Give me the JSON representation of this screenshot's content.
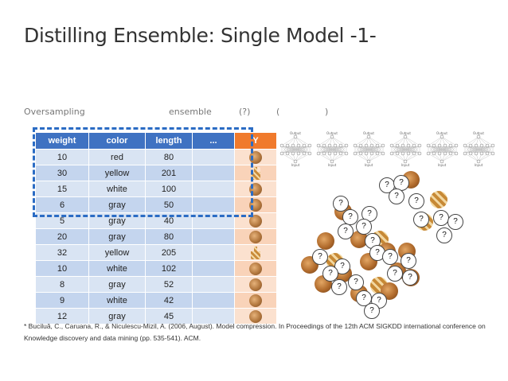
{
  "title": "Distilling Ensemble: Single Model -1-",
  "subtitle": {
    "oversampling": "Oversampling",
    "ensemble": "ensemble",
    "q": "(?)",
    "open": "(",
    "close": ")"
  },
  "table": {
    "headers": [
      "weight",
      "color",
      "length",
      "...",
      "Y"
    ],
    "rows": [
      {
        "weight": "10",
        "color": "red",
        "length": "80",
        "y": "dog"
      },
      {
        "weight": "30",
        "color": "yellow",
        "length": "201",
        "y": "giraffe"
      },
      {
        "weight": "15",
        "color": "white",
        "length": "100",
        "y": "dog"
      },
      {
        "weight": "6",
        "color": "gray",
        "length": "50",
        "y": "dog"
      },
      {
        "weight": "5",
        "color": "gray",
        "length": "40",
        "y": "dog"
      },
      {
        "weight": "20",
        "color": "gray",
        "length": "80",
        "y": "dog"
      },
      {
        "weight": "32",
        "color": "yellow",
        "length": "205",
        "y": "giraffe"
      },
      {
        "weight": "10",
        "color": "white",
        "length": "102",
        "y": "dog"
      },
      {
        "weight": "8",
        "color": "gray",
        "length": "52",
        "y": "dog"
      },
      {
        "weight": "9",
        "color": "white",
        "length": "42",
        "y": "dog"
      },
      {
        "weight": "12",
        "color": "gray",
        "length": "45",
        "y": "dog"
      }
    ]
  },
  "networks": {
    "count": 6,
    "top_label": "Output",
    "bottom_label": "Input"
  },
  "unknown_mark": "?",
  "reference": "* Buciluǎ, C., Caruana, R., & Niculescu-Mizil, A. (2006, August). Model compression. In Proceedings of the 12th ACM SIGKDD international conference on Knowledge discovery and data mining (pp. 535-541). ACM.",
  "colors": {
    "header_blue": "#3f72c2",
    "header_orange": "#f07a2c",
    "dashed_box": "#2b6cc4"
  }
}
